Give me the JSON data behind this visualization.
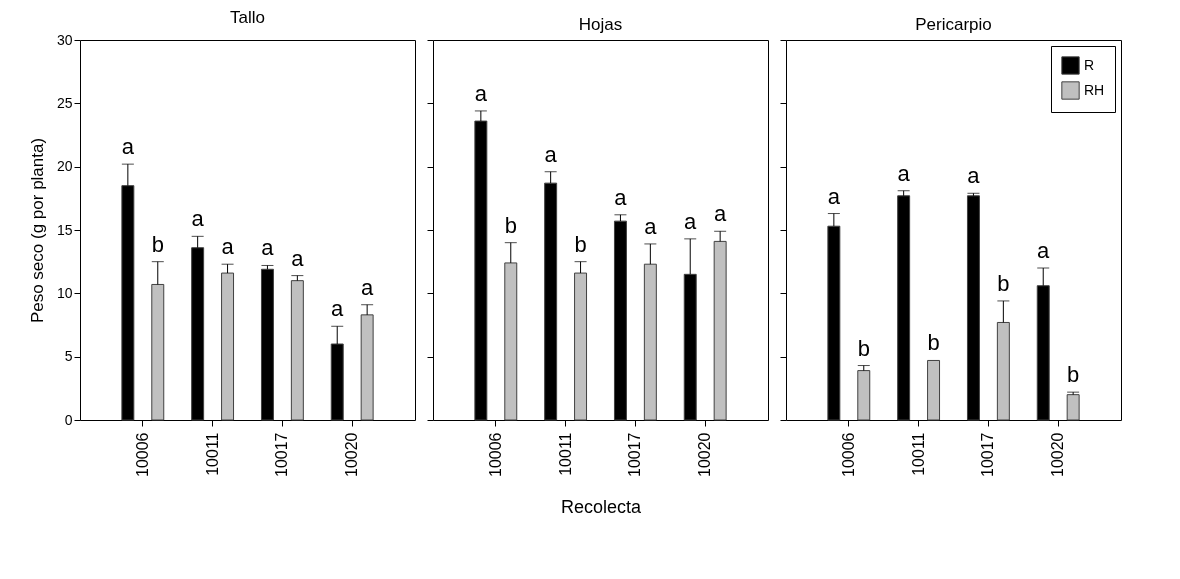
{
  "chart_data": [
    {
      "type": "bar",
      "title": "Tallo",
      "ylabel": "Peso seco (g por planta)",
      "categories": [
        "10006",
        "10011",
        "10017",
        "10020"
      ],
      "ylim": [
        0,
        30
      ],
      "yticks": [
        0,
        5,
        10,
        15,
        20,
        25,
        30
      ],
      "grid": false,
      "legend": false,
      "series": [
        {
          "color": "#000000",
          "values": [
            18.5,
            13.6,
            11.9,
            6.0
          ],
          "errors": [
            [
              18.5,
              20.2
            ],
            [
              13.6,
              14.5
            ],
            [
              11.9,
              12.2
            ],
            [
              6.0,
              7.4
            ]
          ],
          "value_labels": [
            "a",
            "a",
            "a",
            "a"
          ]
        },
        {
          "color": "#c0c0c0",
          "values": [
            10.7,
            11.6,
            11.0,
            8.3
          ],
          "errors": [
            [
              10.7,
              12.5
            ],
            [
              11.6,
              12.3
            ],
            [
              11.0,
              11.4
            ],
            [
              8.3,
              9.1
            ]
          ],
          "value_labels": [
            "b",
            "a",
            "a",
            "a"
          ]
        }
      ]
    },
    {
      "type": "bar",
      "title": "Hojas",
      "xlabel": "Recolecta",
      "categories": [
        "10006",
        "10011",
        "10017",
        "10020"
      ],
      "ylim": [
        0,
        30
      ],
      "yticks": [
        0,
        5,
        10,
        15,
        20,
        25,
        30
      ],
      "tick_labels": "x",
      "grid": false,
      "legend": false,
      "series": [
        {
          "color": "#000000",
          "values": [
            23.6,
            18.7,
            15.7,
            11.5
          ],
          "errors": [
            [
              23.6,
              24.4
            ],
            [
              18.7,
              19.6
            ],
            [
              15.7,
              16.2
            ],
            [
              11.5,
              14.3
            ]
          ],
          "value_labels": [
            "a",
            "a",
            "a",
            "a"
          ]
        },
        {
          "color": "#c0c0c0",
          "values": [
            12.4,
            11.6,
            12.3,
            14.1
          ],
          "errors": [
            [
              12.4,
              14.0
            ],
            [
              11.6,
              12.5
            ],
            [
              12.3,
              13.9
            ],
            [
              14.1,
              14.9
            ]
          ],
          "value_labels": [
            "b",
            "b",
            "a",
            "a"
          ]
        }
      ]
    },
    {
      "type": "bar",
      "title": "Pericarpio",
      "categories": [
        "10006",
        "10011",
        "10017",
        "10020"
      ],
      "ylim": [
        0,
        30
      ],
      "yticks": [
        0,
        5,
        10,
        15,
        20,
        25,
        30
      ],
      "tick_labels": "x",
      "grid": false,
      "legend": "top right",
      "series": [
        {
          "name": "R",
          "color": "#000000",
          "values": [
            15.3,
            17.7,
            17.7,
            10.6
          ],
          "errors": [
            [
              15.3,
              16.3
            ],
            [
              17.7,
              18.1
            ],
            [
              17.7,
              17.9
            ],
            [
              10.6,
              12.0
            ]
          ],
          "value_labels": [
            "a",
            "a",
            "a",
            "a"
          ]
        },
        {
          "name": "RH",
          "color": "#c0c0c0",
          "values": [
            3.9,
            4.7,
            7.7,
            2.0
          ],
          "errors": [
            [
              3.9,
              4.3
            ],
            null,
            [
              7.7,
              9.4
            ],
            [
              2.0,
              2.2
            ]
          ],
          "value_labels": [
            "b",
            "b",
            "b",
            "b"
          ]
        }
      ]
    }
  ]
}
